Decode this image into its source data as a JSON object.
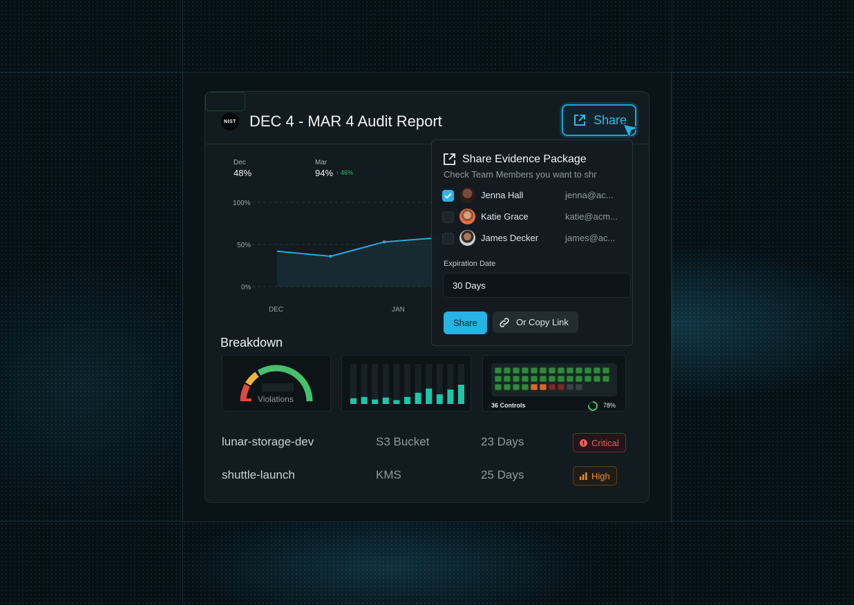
{
  "report": {
    "title": "DEC 4 - MAR 4 Audit Report",
    "logo_text": "NIST"
  },
  "share_button": {
    "label": "Share"
  },
  "stats": [
    {
      "label": "Dec",
      "value": "48%"
    },
    {
      "label": "Mar",
      "value": "94%",
      "delta": "46%"
    }
  ],
  "chart_data": {
    "type": "line",
    "y_ticks": [
      "100%",
      "50%",
      "0%"
    ],
    "x_ticks": [
      "DEC",
      "JAN"
    ],
    "ylim": [
      0,
      100
    ],
    "series": [
      {
        "x": [
          0,
          0.5,
          1,
          1.5
        ],
        "values": [
          42,
          36,
          53,
          58
        ]
      }
    ]
  },
  "breakdown": {
    "title": "Breakdown",
    "gauge_label": "Violations",
    "bars": [
      18,
      22,
      14,
      20,
      12,
      22,
      35,
      48,
      30,
      45,
      60
    ],
    "controls_label": "36 Controls",
    "controls_percent": "78%",
    "controls_percent_value": 78,
    "control_states": [
      "g",
      "g",
      "g",
      "g",
      "g",
      "g",
      "g",
      "g",
      "g",
      "g",
      "g",
      "g",
      "g",
      "g",
      "g",
      "g",
      "g",
      "g",
      "g",
      "g",
      "g",
      "g",
      "g",
      "g",
      "g",
      "g",
      "g",
      "g",
      "g",
      "g",
      "o",
      "o",
      "r",
      "r",
      "d",
      "d"
    ]
  },
  "rows": [
    {
      "name": "lunar-storage-dev",
      "type": "S3 Bucket",
      "age": "23 Days",
      "severity": "Critical"
    },
    {
      "name": "shuttle-launch",
      "type": "KMS",
      "age": "25 Days",
      "severity": "High"
    }
  ],
  "popup": {
    "title": "Share Evidence Package",
    "subtitle": "Check Team Members you want to shr",
    "members": [
      {
        "name": "Jenna Hall",
        "email": "jenna@ac...",
        "checked": true
      },
      {
        "name": "Katie Grace",
        "email": "katie@acm...",
        "checked": false
      },
      {
        "name": "James Decker",
        "email": "james@ac...",
        "checked": false
      }
    ],
    "expiration_label": "Expiration Date",
    "expiration_value": "30 Days",
    "share_label": "Share",
    "copy_label": "Or Copy Link"
  },
  "colors": {
    "accent": "#27b3e3",
    "critical": "#ef5b5b",
    "high": "#f08a24",
    "success": "#34c46a",
    "bar": "#1fc6a6"
  }
}
